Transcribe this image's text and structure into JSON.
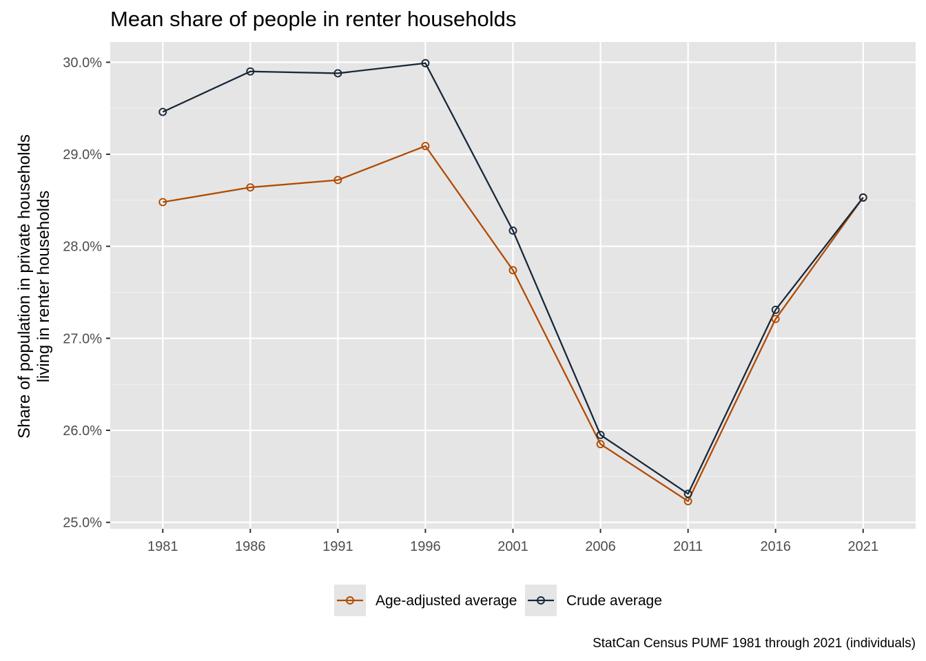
{
  "chart_data": {
    "type": "line",
    "title": "Mean share of people in renter households",
    "xlabel": "",
    "ylabel_lines": [
      "Share of population in private households",
      "living in renter households"
    ],
    "caption": "StatCan Census PUMF 1981 through 2021 (individuals)",
    "x": [
      "1981",
      "1986",
      "1991",
      "1996",
      "2001",
      "2006",
      "2011",
      "2016",
      "2021"
    ],
    "ylim": [
      24.93,
      30.22
    ],
    "yticks": [
      25.0,
      26.0,
      27.0,
      28.0,
      29.0,
      30.0
    ],
    "ytick_labels": [
      "25.0%",
      "26.0%",
      "27.0%",
      "28.0%",
      "29.0%",
      "30.0%"
    ],
    "grid": true,
    "legend_position": "bottom",
    "series": [
      {
        "name": "Age-adjusted average",
        "color": "#B04A00",
        "values": [
          28.48,
          28.64,
          28.72,
          29.09,
          27.74,
          25.85,
          25.23,
          27.21,
          28.53
        ]
      },
      {
        "name": "Crude average",
        "color": "#17283A",
        "values": [
          29.46,
          29.9,
          29.88,
          29.99,
          28.17,
          25.95,
          25.31,
          27.31,
          28.53
        ]
      }
    ],
    "colors": {
      "panel_background": "#E5E5E5",
      "grid_major": "#FFFFFF",
      "grid_minor": "#F2F2F2",
      "tick_mark": "#333333",
      "legend_key_background": "#E5E5E5"
    }
  }
}
